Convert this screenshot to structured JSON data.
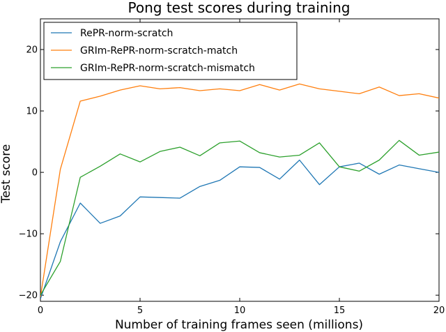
{
  "chart_data": {
    "type": "line",
    "title": "Pong test scores during training",
    "xlabel": "Number of training frames seen (millions)",
    "ylabel": "Test score",
    "xlim": [
      0,
      20
    ],
    "ylim": [
      -21,
      25
    ],
    "xticks": [
      0,
      5,
      10,
      15,
      20
    ],
    "yticks": [
      -20,
      -10,
      0,
      10,
      20
    ],
    "ytick_labels": [
      "−20",
      "−10",
      "0",
      "10",
      "20"
    ],
    "grid": false,
    "legend_position": "top-left",
    "x": [
      0,
      1,
      2,
      3,
      4,
      5,
      6,
      7,
      8,
      9,
      10,
      11,
      12,
      13,
      14,
      15,
      16,
      17,
      18,
      19,
      20
    ],
    "series": [
      {
        "name": "RePR-norm-scratch",
        "color": "#1f77b4",
        "values": [
          -20.6,
          -11.3,
          -5.0,
          -8.3,
          -7.1,
          -4.0,
          -4.1,
          -4.2,
          -2.3,
          -1.3,
          0.9,
          0.8,
          -1.1,
          2.0,
          -2.0,
          0.9,
          1.5,
          -0.3,
          1.2,
          0.6,
          0.0
        ]
      },
      {
        "name": "GRIm-RePR-norm-scratch-match",
        "color": "#ff7f0e",
        "values": [
          -20.3,
          0.5,
          11.6,
          12.4,
          13.4,
          14.1,
          13.6,
          13.8,
          13.3,
          13.6,
          13.3,
          14.3,
          13.4,
          14.4,
          13.6,
          13.2,
          12.8,
          13.9,
          12.5,
          12.8,
          12.1
        ]
      },
      {
        "name": "GRIm-RePR-norm-scratch-mismatch",
        "color": "#2ca02c",
        "values": [
          -20.0,
          -14.5,
          -0.8,
          1.0,
          3.0,
          1.7,
          3.4,
          4.1,
          2.7,
          4.8,
          5.1,
          3.2,
          2.5,
          2.8,
          4.8,
          0.9,
          0.2,
          2.0,
          5.2,
          2.8,
          3.3
        ]
      }
    ]
  }
}
